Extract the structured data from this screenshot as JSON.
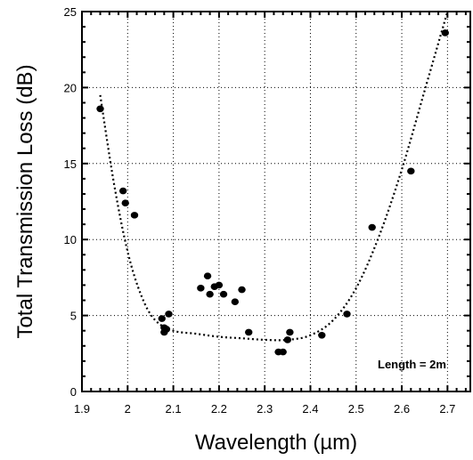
{
  "chart_data": {
    "type": "scatter",
    "title": "",
    "xlabel": "Wavelength (µm)",
    "ylabel": "Total Transmission Loss (dB)",
    "xlim": [
      1.9,
      2.75
    ],
    "ylim": [
      0,
      25
    ],
    "grid": true,
    "x_ticks": [
      1.9,
      2.0,
      2.1,
      2.2,
      2.3,
      2.4,
      2.5,
      2.6,
      2.7
    ],
    "x_tick_labels": [
      "1.9",
      "2",
      "2.1",
      "2.2",
      "2.3",
      "2.4",
      "2.5",
      "2.6",
      "2.7"
    ],
    "y_ticks": [
      0,
      5,
      10,
      15,
      20,
      25
    ],
    "y_tick_labels": [
      "0",
      "5",
      "10",
      "15",
      "20",
      "25"
    ],
    "annotation": "Length  = 2m",
    "series": [
      {
        "kind": "points",
        "x": [
          1.94,
          1.99,
          1.995,
          2.015,
          2.075,
          2.08,
          2.08,
          2.085,
          2.09,
          2.16,
          2.175,
          2.18,
          2.19,
          2.2,
          2.21,
          2.235,
          2.25,
          2.265,
          2.33,
          2.34,
          2.35,
          2.355,
          2.425,
          2.48,
          2.535,
          2.62,
          2.695
        ],
        "y": [
          18.6,
          13.2,
          12.4,
          11.6,
          4.8,
          4.2,
          3.9,
          4.1,
          5.1,
          6.8,
          7.6,
          6.4,
          6.9,
          7.0,
          6.4,
          5.9,
          6.7,
          3.9,
          2.6,
          2.6,
          3.4,
          3.9,
          3.7,
          5.1,
          10.8,
          14.5,
          23.6
        ]
      },
      {
        "kind": "fit-curve",
        "x": [
          1.94,
          1.97,
          2.0,
          2.03,
          2.06,
          2.1,
          2.15,
          2.2,
          2.25,
          2.3,
          2.35,
          2.4,
          2.45,
          2.5,
          2.55,
          2.6,
          2.65,
          2.7
        ],
        "y": [
          19.5,
          13.7,
          9.2,
          6.3,
          4.7,
          4.0,
          3.8,
          3.6,
          3.5,
          3.4,
          3.4,
          3.7,
          4.7,
          6.8,
          10.2,
          14.6,
          19.8,
          25.0
        ]
      }
    ]
  }
}
